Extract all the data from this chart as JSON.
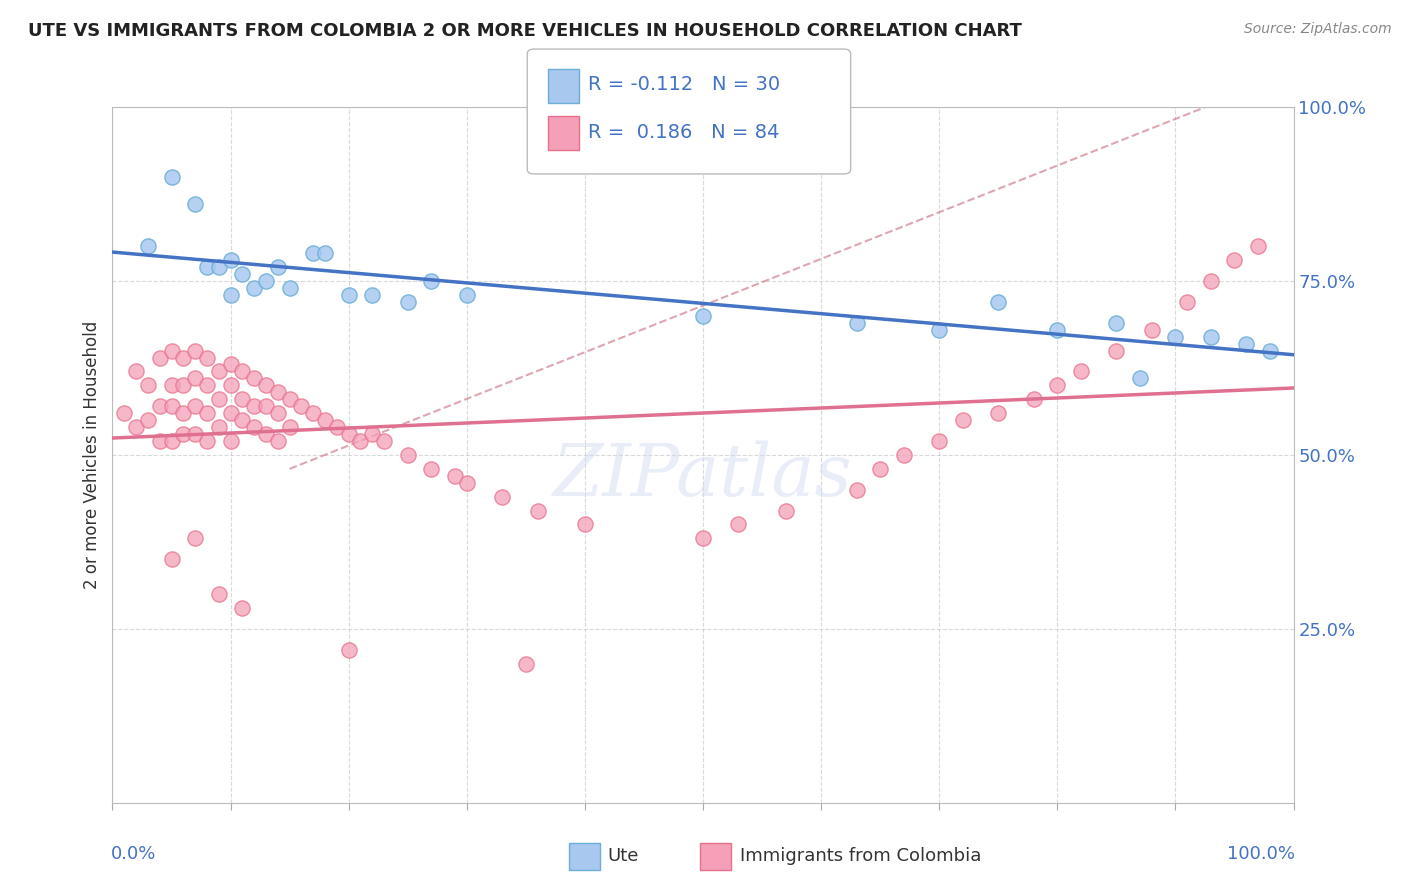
{
  "title": "UTE VS IMMIGRANTS FROM COLOMBIA 2 OR MORE VEHICLES IN HOUSEHOLD CORRELATION CHART",
  "source": "Source: ZipAtlas.com",
  "ylabel": "2 or more Vehicles in Household",
  "legend_label1": "Ute",
  "legend_label2": "Immigrants from Colombia",
  "r1": "-0.112",
  "n1": "30",
  "r2": "0.186",
  "n2": "84",
  "ute_color": "#a8c8f0",
  "colombia_color": "#f4a0b8",
  "ute_edge_color": "#6baed6",
  "colombia_edge_color": "#e8708a",
  "ute_line_color": "#4472c4",
  "colombia_line_color": "#e07090",
  "dashed_line_color": "#e09090",
  "watermark": "ZIPatlas",
  "xlim": [
    0.0,
    1.0
  ],
  "ylim": [
    0.0,
    1.0
  ],
  "ute_x": [
    0.03,
    0.05,
    0.07,
    0.08,
    0.09,
    0.1,
    0.1,
    0.11,
    0.12,
    0.13,
    0.14,
    0.15,
    0.17,
    0.18,
    0.2,
    0.22,
    0.25,
    0.27,
    0.3,
    0.5,
    0.63,
    0.7,
    0.75,
    0.8,
    0.85,
    0.87,
    0.9,
    0.93,
    0.96,
    0.98
  ],
  "ute_y": [
    0.8,
    0.9,
    0.86,
    0.77,
    0.77,
    0.78,
    0.73,
    0.76,
    0.74,
    0.75,
    0.77,
    0.74,
    0.79,
    0.79,
    0.73,
    0.73,
    0.72,
    0.75,
    0.73,
    0.7,
    0.69,
    0.68,
    0.72,
    0.68,
    0.69,
    0.61,
    0.67,
    0.67,
    0.66,
    0.65
  ],
  "colombia_x": [
    0.01,
    0.02,
    0.02,
    0.03,
    0.03,
    0.04,
    0.04,
    0.04,
    0.05,
    0.05,
    0.05,
    0.05,
    0.06,
    0.06,
    0.06,
    0.06,
    0.07,
    0.07,
    0.07,
    0.07,
    0.08,
    0.08,
    0.08,
    0.08,
    0.09,
    0.09,
    0.09,
    0.1,
    0.1,
    0.1,
    0.1,
    0.11,
    0.11,
    0.11,
    0.12,
    0.12,
    0.12,
    0.13,
    0.13,
    0.13,
    0.14,
    0.14,
    0.14,
    0.15,
    0.15,
    0.16,
    0.17,
    0.18,
    0.19,
    0.2,
    0.21,
    0.22,
    0.23,
    0.25,
    0.27,
    0.29,
    0.3,
    0.33,
    0.36,
    0.4,
    0.5,
    0.53,
    0.57,
    0.63,
    0.65,
    0.67,
    0.7,
    0.72,
    0.75,
    0.78,
    0.8,
    0.82,
    0.85,
    0.88,
    0.91,
    0.93,
    0.95,
    0.97,
    0.05,
    0.07,
    0.09,
    0.11,
    0.2,
    0.35
  ],
  "colombia_y": [
    0.56,
    0.62,
    0.54,
    0.6,
    0.55,
    0.64,
    0.57,
    0.52,
    0.65,
    0.6,
    0.57,
    0.52,
    0.64,
    0.6,
    0.56,
    0.53,
    0.65,
    0.61,
    0.57,
    0.53,
    0.64,
    0.6,
    0.56,
    0.52,
    0.62,
    0.58,
    0.54,
    0.63,
    0.6,
    0.56,
    0.52,
    0.62,
    0.58,
    0.55,
    0.61,
    0.57,
    0.54,
    0.6,
    0.57,
    0.53,
    0.59,
    0.56,
    0.52,
    0.58,
    0.54,
    0.57,
    0.56,
    0.55,
    0.54,
    0.53,
    0.52,
    0.53,
    0.52,
    0.5,
    0.48,
    0.47,
    0.46,
    0.44,
    0.42,
    0.4,
    0.38,
    0.4,
    0.42,
    0.45,
    0.48,
    0.5,
    0.52,
    0.55,
    0.56,
    0.58,
    0.6,
    0.62,
    0.65,
    0.68,
    0.72,
    0.75,
    0.78,
    0.8,
    0.35,
    0.38,
    0.3,
    0.28,
    0.22,
    0.2
  ]
}
